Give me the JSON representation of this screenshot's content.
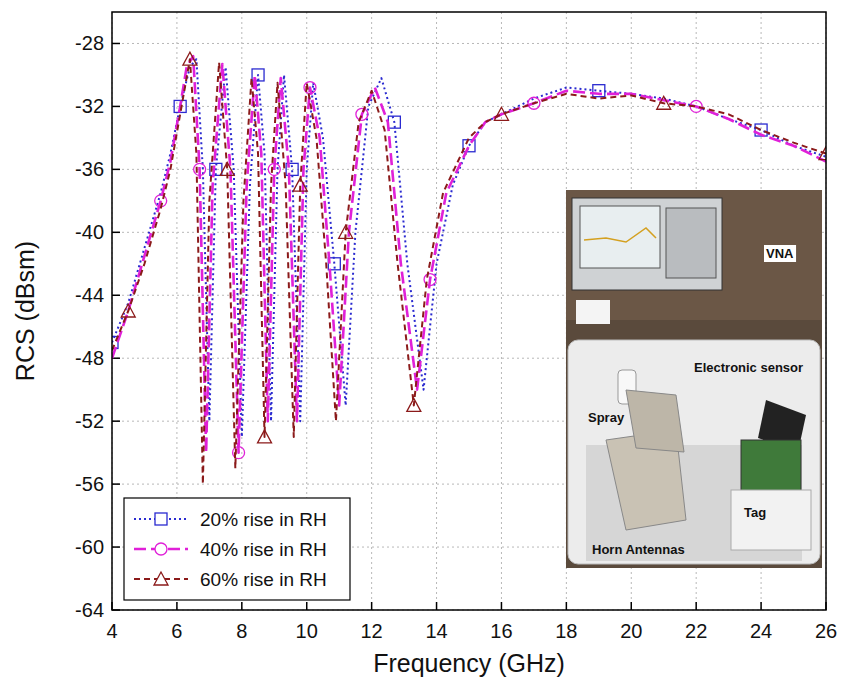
{
  "chart_data": {
    "type": "line",
    "x_label": "Frequency (GHz)",
    "y_label": "RCS (dBsm)",
    "xlim": [
      4,
      26
    ],
    "xticks": [
      4,
      6,
      8,
      10,
      12,
      14,
      16,
      18,
      20,
      22,
      24,
      26
    ],
    "ylim": [
      -64,
      -26
    ],
    "yticks": [
      -64,
      -60,
      -56,
      -52,
      -48,
      -44,
      -40,
      -36,
      -32,
      -28
    ],
    "grid": true,
    "legend": "lower left",
    "annotations": [
      "VNA",
      "Electronic sensor",
      "Spray",
      "Tag",
      "Horn Antennas"
    ],
    "series": [
      {
        "name": "20% rise in RH",
        "color": "#2a2ad0",
        "line_style": "dotted",
        "marker": "square",
        "x": [
          4,
          4.5,
          5,
          5.5,
          5.8,
          6.1,
          6.4,
          6.6,
          6.8,
          7.0,
          7.2,
          7.5,
          7.75,
          8.0,
          8.25,
          8.5,
          8.7,
          8.9,
          9.1,
          9.3,
          9.55,
          9.8,
          10.0,
          10.2,
          10.5,
          10.85,
          11.2,
          11.5,
          11.9,
          12.3,
          12.7,
          13.1,
          13.6,
          14.0,
          14.5,
          15,
          15.5,
          16,
          17,
          18,
          19,
          20,
          21,
          22,
          23,
          24,
          25,
          26
        ],
        "values": [
          -47,
          -44.5,
          -41,
          -37.5,
          -35,
          -32,
          -29.5,
          -29,
          -36,
          -52,
          -36,
          -29.5,
          -36,
          -53,
          -37,
          -30,
          -35,
          -52,
          -36,
          -30,
          -36,
          -52,
          -36,
          -30.5,
          -34,
          -42,
          -51,
          -40,
          -32,
          -30.2,
          -33,
          -42,
          -50,
          -42,
          -37,
          -34.5,
          -33,
          -32.5,
          -31.5,
          -30.8,
          -31,
          -31.2,
          -31.5,
          -32,
          -32.8,
          -33.5,
          -34.5,
          -35.2
        ]
      },
      {
        "name": "40% rise in RH",
        "color": "#e020d8",
        "line_style": "dashed",
        "marker": "circle",
        "x": [
          4,
          4.5,
          5,
          5.5,
          5.8,
          6.1,
          6.3,
          6.5,
          6.7,
          6.9,
          7.1,
          7.4,
          7.65,
          7.9,
          8.15,
          8.4,
          8.6,
          8.8,
          9.0,
          9.2,
          9.45,
          9.7,
          9.9,
          10.1,
          10.4,
          10.7,
          11.0,
          11.3,
          11.7,
          12.1,
          12.5,
          12.9,
          13.4,
          13.8,
          14.3,
          15,
          15.5,
          16,
          17,
          18,
          19,
          20,
          21,
          22,
          23,
          24,
          25,
          26
        ],
        "values": [
          -48,
          -45,
          -41.5,
          -38,
          -35.5,
          -32,
          -29.5,
          -28.8,
          -36,
          -54,
          -37,
          -29.3,
          -36,
          -54,
          -37,
          -30,
          -35,
          -52,
          -36,
          -30.2,
          -36,
          -52,
          -36,
          -30.8,
          -34,
          -42,
          -51,
          -40,
          -32.5,
          -30.8,
          -33,
          -42,
          -50,
          -43,
          -37.5,
          -34.5,
          -33,
          -32.5,
          -31.8,
          -31,
          -31.2,
          -31.2,
          -31.6,
          -32,
          -32.8,
          -33.8,
          -34.5,
          -35.5
        ]
      },
      {
        "name": "60% rise in RH",
        "color": "#8b1a1a",
        "line_style": "short-dashed",
        "marker": "triangle",
        "x": [
          4,
          4.5,
          5,
          5.5,
          5.8,
          6.1,
          6.4,
          6.6,
          6.8,
          7.0,
          7.3,
          7.55,
          7.8,
          8.05,
          8.3,
          8.5,
          8.7,
          8.9,
          9.1,
          9.35,
          9.6,
          9.8,
          10.0,
          10.3,
          10.6,
          10.9,
          11.2,
          11.6,
          12.0,
          12.4,
          12.8,
          13.3,
          13.7,
          14.2,
          15,
          15.5,
          16,
          17,
          18,
          19,
          20,
          21,
          22,
          23,
          24,
          25,
          26
        ],
        "values": [
          -47.5,
          -45,
          -42,
          -38.5,
          -36,
          -32.5,
          -29,
          -35,
          -56,
          -38,
          -29.2,
          -36,
          -55,
          -38,
          -30.2,
          -35,
          -53,
          -37,
          -30.5,
          -37,
          -53,
          -37,
          -30.5,
          -34,
          -42,
          -52,
          -40,
          -33,
          -31,
          -33.5,
          -42,
          -51,
          -43,
          -37.5,
          -34,
          -33,
          -32.5,
          -31.8,
          -31.2,
          -31.5,
          -31.3,
          -31.8,
          -32,
          -32.5,
          -33.5,
          -34.3,
          -35
        ]
      }
    ]
  }
}
